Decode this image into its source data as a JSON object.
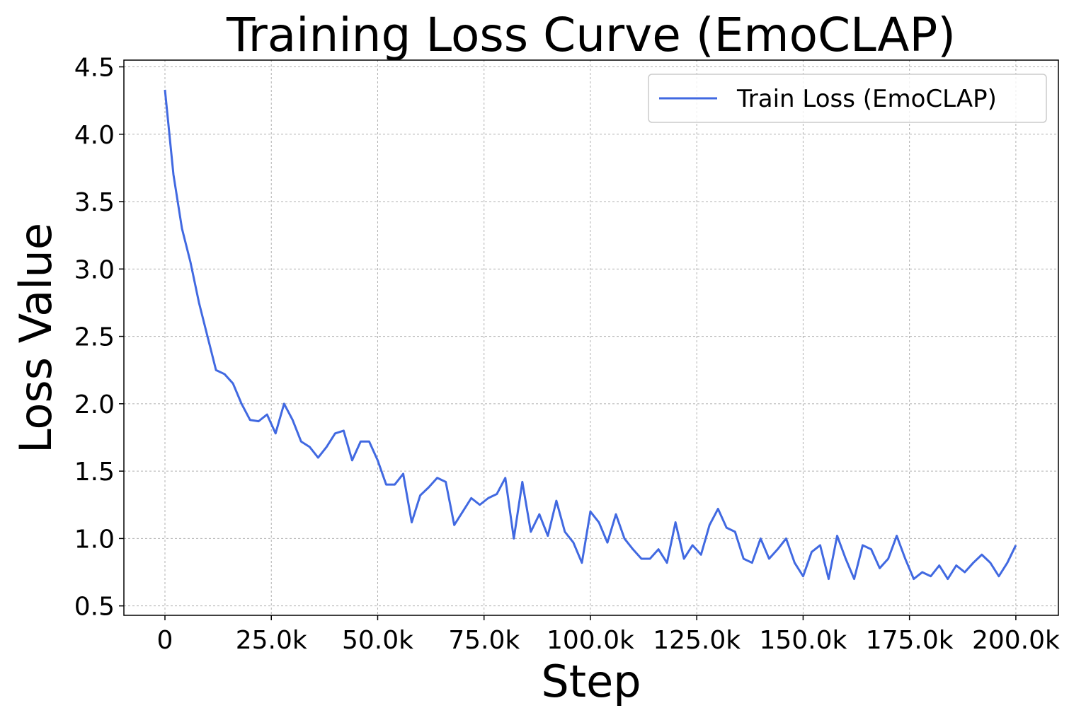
{
  "chart_data": {
    "type": "line",
    "title": "Training Loss Curve (EmoCLAP)",
    "x_label": "Step",
    "y_label": "Loss Value",
    "x": [
      0,
      2000,
      4000,
      6000,
      8000,
      10000,
      12000,
      14000,
      16000,
      18000,
      20000,
      22000,
      24000,
      26000,
      28000,
      30000,
      32000,
      34000,
      36000,
      38000,
      40000,
      42000,
      44000,
      46000,
      48000,
      50000,
      52000,
      54000,
      56000,
      58000,
      60000,
      62000,
      64000,
      66000,
      68000,
      70000,
      72000,
      74000,
      76000,
      78000,
      80000,
      82000,
      84000,
      86000,
      88000,
      90000,
      92000,
      94000,
      96000,
      98000,
      100000,
      102000,
      104000,
      106000,
      108000,
      110000,
      112000,
      114000,
      116000,
      118000,
      120000,
      122000,
      124000,
      126000,
      128000,
      130000,
      132000,
      134000,
      136000,
      138000,
      140000,
      142000,
      144000,
      146000,
      148000,
      150000,
      152000,
      154000,
      156000,
      158000,
      160000,
      162000,
      164000,
      166000,
      168000,
      170000,
      172000,
      174000,
      176000,
      178000,
      180000,
      182000,
      184000,
      186000,
      188000,
      190000,
      192000,
      194000,
      196000,
      198000,
      200000
    ],
    "series": [
      {
        "name": "Train Loss (EmoCLAP)",
        "color": "#4169e1",
        "values": [
          4.33,
          3.7,
          3.3,
          3.05,
          2.75,
          2.5,
          2.25,
          2.22,
          2.15,
          2.0,
          1.88,
          1.87,
          1.92,
          1.78,
          2.0,
          1.88,
          1.72,
          1.68,
          1.6,
          1.68,
          1.78,
          1.8,
          1.58,
          1.72,
          1.72,
          1.58,
          1.4,
          1.4,
          1.48,
          1.12,
          1.32,
          1.38,
          1.45,
          1.42,
          1.1,
          1.2,
          1.3,
          1.25,
          1.3,
          1.33,
          1.45,
          1.0,
          1.42,
          1.05,
          1.18,
          1.02,
          1.28,
          1.05,
          0.97,
          0.82,
          1.2,
          1.12,
          0.97,
          1.18,
          1.0,
          0.92,
          0.85,
          0.85,
          0.92,
          0.82,
          1.12,
          0.85,
          0.95,
          0.88,
          1.1,
          1.22,
          1.08,
          1.05,
          0.85,
          0.82,
          1.0,
          0.85,
          0.92,
          1.0,
          0.82,
          0.72,
          0.9,
          0.95,
          0.7,
          1.02,
          0.85,
          0.7,
          0.95,
          0.92,
          0.78,
          0.85,
          1.02,
          0.85,
          0.7,
          0.75,
          0.72,
          0.8,
          0.7,
          0.8,
          0.75,
          0.82,
          0.88,
          0.82,
          0.72,
          0.82,
          0.95
        ]
      }
    ],
    "xlim": [
      -9650,
      210000
    ],
    "xticks": [
      0,
      {
        "value": 25000,
        "label": "25.0k"
      },
      {
        "value": 50000,
        "label": "50.0k"
      },
      {
        "value": 75000,
        "label": "75.0k"
      },
      {
        "value": 100000,
        "label": "100.0k"
      },
      {
        "value": 125000,
        "label": "125.0k"
      },
      {
        "value": 150000,
        "label": "150.0k"
      },
      {
        "value": 175000,
        "label": "175.0k"
      },
      {
        "value": 200000,
        "label": "200.0k"
      }
    ],
    "ylim": [
      0.43,
      4.55
    ],
    "yticks": [
      0.5,
      {
        "value": 1.0,
        "label": "1.0"
      },
      1.5,
      {
        "value": 2.0,
        "label": "2.0"
      },
      2.5,
      {
        "value": 3.0,
        "label": "3.0"
      },
      3.5,
      {
        "value": 4.0,
        "label": "4.0"
      },
      4.5
    ],
    "grid": true,
    "legend": "upper right"
  }
}
